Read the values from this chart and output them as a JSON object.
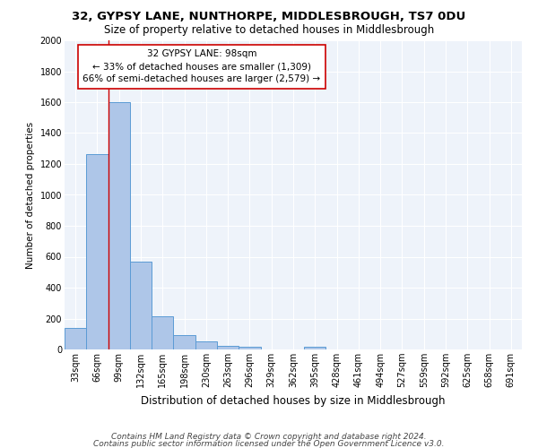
{
  "title1": "32, GYPSY LANE, NUNTHORPE, MIDDLESBROUGH, TS7 0DU",
  "title2": "Size of property relative to detached houses in Middlesbrough",
  "xlabel": "Distribution of detached houses by size in Middlesbrough",
  "ylabel": "Number of detached properties",
  "bar_labels": [
    "33sqm",
    "66sqm",
    "99sqm",
    "132sqm",
    "165sqm",
    "198sqm",
    "230sqm",
    "263sqm",
    "296sqm",
    "329sqm",
    "362sqm",
    "395sqm",
    "428sqm",
    "461sqm",
    "494sqm",
    "527sqm",
    "559sqm",
    "592sqm",
    "625sqm",
    "658sqm",
    "691sqm"
  ],
  "bar_values": [
    140,
    1265,
    1600,
    570,
    215,
    95,
    50,
    25,
    15,
    0,
    0,
    15,
    0,
    0,
    0,
    0,
    0,
    0,
    0,
    0,
    0
  ],
  "bar_color": "#aec6e8",
  "bar_edge_color": "#5b9bd5",
  "vline_x": 2,
  "vline_color": "#cc0000",
  "annotation_line1": "32 GYPSY LANE: 98sqm",
  "annotation_line2": "← 33% of detached houses are smaller (1,309)",
  "annotation_line3": "66% of semi-detached houses are larger (2,579) →",
  "annotation_box_color": "#ffffff",
  "annotation_box_edge": "#cc0000",
  "ylim": [
    0,
    2000
  ],
  "yticks": [
    0,
    200,
    400,
    600,
    800,
    1000,
    1200,
    1400,
    1600,
    1800,
    2000
  ],
  "bg_color": "#eef3fa",
  "grid_color": "#ffffff",
  "footer_line1": "Contains HM Land Registry data © Crown copyright and database right 2024.",
  "footer_line2": "Contains public sector information licensed under the Open Government Licence v3.0.",
  "title1_fontsize": 9.5,
  "title2_fontsize": 8.5,
  "xlabel_fontsize": 8.5,
  "ylabel_fontsize": 7.5,
  "tick_fontsize": 7,
  "annotation_fontsize": 7.5,
  "footer_fontsize": 6.5
}
